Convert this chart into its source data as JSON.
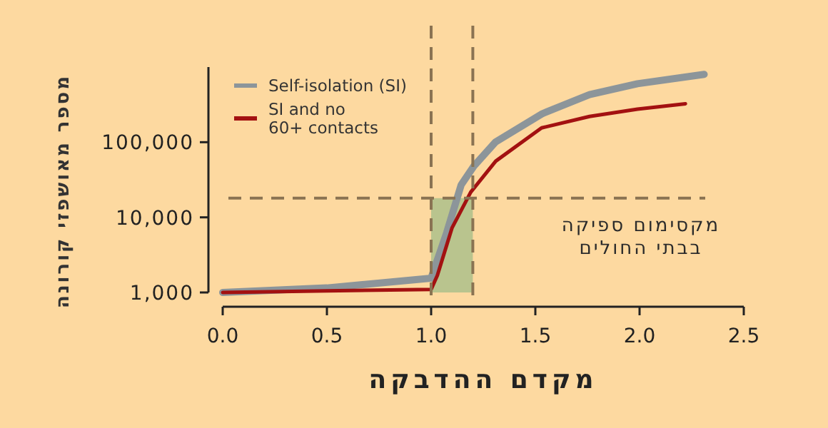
{
  "chart_data": {
    "type": "line",
    "xlabel": "מקדם ההדבקה",
    "ylabel": "מספר מאושפזי קורונה",
    "log": "y",
    "xlim": [
      0,
      2.5
    ],
    "xticks": [
      {
        "value": 0,
        "label": "0.0"
      },
      {
        "value": 0.5,
        "label": "0.5"
      },
      {
        "value": 1,
        "label": "1.0"
      },
      {
        "value": 1.5,
        "label": "1.5"
      },
      {
        "value": 2,
        "label": "2.0"
      },
      {
        "value": 2.5,
        "label": "2.5"
      }
    ],
    "ylim": [
      1000,
      1000000
    ],
    "yticks": [
      {
        "value": 1000,
        "label": "1,000"
      },
      {
        "value": 10000,
        "label": "10,000"
      },
      {
        "value": 100000,
        "label": "100,000"
      }
    ],
    "series": [
      {
        "name": "Self-isolation (SI)",
        "color": "#8c959a",
        "x": [
          0,
          0.5,
          1.0,
          1.075,
          1.144,
          1.205,
          1.308,
          1.534,
          1.76,
          1.99,
          2.31
        ],
        "values": [
          1000,
          1150,
          1550,
          6300,
          27000,
          48000,
          100000,
          240000,
          430000,
          600000,
          800000
        ]
      },
      {
        "name": "SI and no\n60+ contacts",
        "color": "#a31111",
        "x": [
          0,
          0.5,
          1.0,
          1.03,
          1.1,
          1.19,
          1.31,
          1.53,
          1.76,
          1.99,
          2.22
        ],
        "values": [
          1000,
          1050,
          1100,
          1690,
          7200,
          21600,
          56000,
          155000,
          220000,
          275000,
          325000
        ]
      }
    ],
    "ref_lines": [
      {
        "axis": "y",
        "value": 18000,
        "label": "מקסימום ספיקה\nבבתי החולים",
        "color": "#8a7352",
        "line_style": "dashed"
      },
      {
        "axis": "x",
        "value": 1.0,
        "color": "#8a7352",
        "line_style": "dashed"
      },
      {
        "axis": "x",
        "value": 1.2,
        "color": "#8a7352",
        "line_style": "dashed"
      }
    ],
    "bands": [
      {
        "axis": "x",
        "from": 1.0,
        "to": 1.2,
        "color": "#b9c48e"
      }
    ],
    "legend": "top left",
    "grid": false,
    "marker": "none",
    "line_style": "solid"
  }
}
